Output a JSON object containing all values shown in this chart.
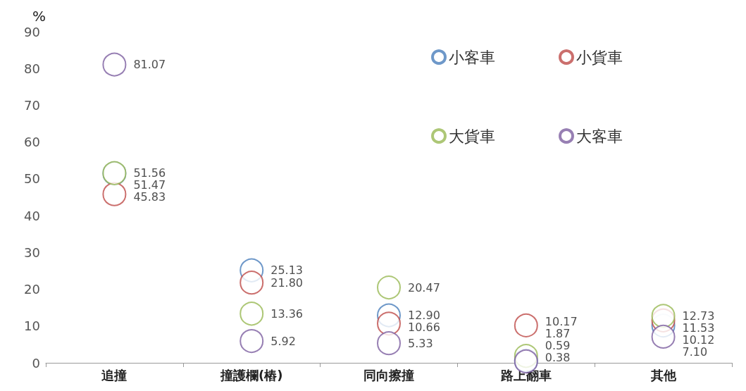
{
  "chart_data": {
    "type": "scatter",
    "ylabel": "%",
    "categories": [
      "追撞",
      "撞護欄(樁)",
      "同向擦撞",
      "路上翻車",
      "其他"
    ],
    "series": [
      {
        "name": "小客車",
        "color": "#4a7ebb",
        "values": [
          51.47,
          25.13,
          12.9,
          0.59,
          10.12
        ],
        "value_labels": [
          "51.47",
          "25.13",
          "12.90",
          "0.59",
          "10.12"
        ]
      },
      {
        "name": "小貨車",
        "color": "#be4b48",
        "values": [
          45.83,
          21.8,
          10.66,
          10.17,
          11.53
        ],
        "value_labels": [
          "45.83",
          "21.80",
          "10.66",
          "10.17",
          "11.53"
        ]
      },
      {
        "name": "大貨車",
        "color": "#98b954",
        "values": [
          51.56,
          13.36,
          20.47,
          1.87,
          12.73
        ],
        "value_labels": [
          "51.56",
          "13.36",
          "20.47",
          "1.87",
          "12.73"
        ]
      },
      {
        "name": "大客車",
        "color": "#7d5fa0",
        "values": [
          81.07,
          5.92,
          5.33,
          0.38,
          7.1
        ],
        "value_labels": [
          "81.07",
          "5.92",
          "5.33",
          "0.38",
          "7.10"
        ]
      }
    ],
    "ylim": [
      0,
      90
    ],
    "yticks": [
      0,
      10,
      20,
      30,
      40,
      50,
      60,
      70,
      80,
      90
    ],
    "grid": false,
    "legend": "top right",
    "marker": "circle"
  }
}
